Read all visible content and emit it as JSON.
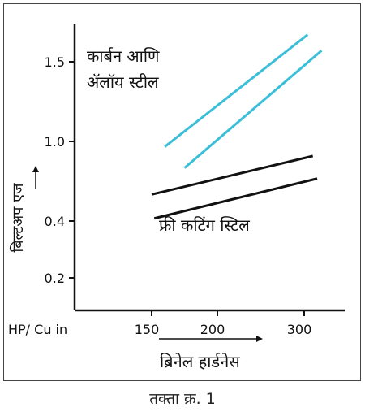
{
  "chart_data": {
    "type": "line",
    "annotations": {
      "carbon": [
        "कार्बन आणि",
        "ॲलॉय स्टील"
      ],
      "free_cutting": "फ्री कटिंग स्टिल"
    },
    "ylabel": "बिल्टअप एज",
    "xlabel": "ब्रिनेल हार्डनेस",
    "x_unit_label": "HP/ Cu in",
    "x_ticks": [
      150,
      200,
      300
    ],
    "y_ticks": [
      0.2,
      0.4,
      1.0,
      1.5
    ],
    "series": [
      {
        "group": "carbon",
        "color": "#3bbfd8",
        "points": [
          [
            160,
            0.96
          ],
          [
            304,
            1.67
          ]
        ]
      },
      {
        "group": "carbon",
        "color": "#3bbfd8",
        "points": [
          [
            175,
            0.8
          ],
          [
            320,
            1.57
          ]
        ]
      },
      {
        "group": "free_cutting",
        "color": "#111111",
        "points": [
          [
            150,
            0.6
          ],
          [
            310,
            0.89
          ]
        ]
      },
      {
        "group": "free_cutting",
        "color": "#111111",
        "points": [
          [
            152,
            0.42
          ],
          [
            315,
            0.72
          ]
        ]
      }
    ]
  },
  "caption": "तक्ता क्र. 1"
}
